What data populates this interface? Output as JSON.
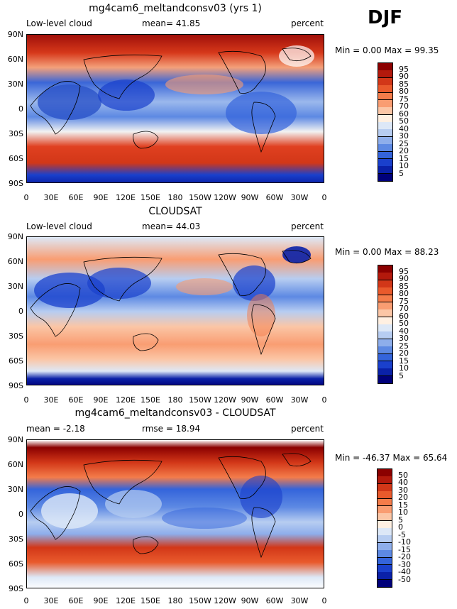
{
  "season": "DJF",
  "panels": [
    {
      "title": "mg4cam6_meltandconsv03 (yrs 1)",
      "left_label": "Low-level cloud",
      "mid_label": "mean=  41.85",
      "right_label": "percent",
      "minmax": "Min =    0.00 Max =   99.35",
      "colorbar_labels": [
        "95",
        "90",
        "85",
        "80",
        "75",
        "70",
        "60",
        "50",
        "40",
        "30",
        "25",
        "20",
        "15",
        "10",
        "5"
      ],
      "colorbar_colors": [
        "#8b0000",
        "#b3190c",
        "#d23718",
        "#e95a2c",
        "#f47c4a",
        "#f99d72",
        "#fbc6a6",
        "#fff0e2",
        "#dde8f7",
        "#b7cdf1",
        "#8eaeeb",
        "#5d89e3",
        "#3464db",
        "#1a40cc",
        "#0a21a8",
        "#00007a"
      ]
    },
    {
      "title": "CLOUDSAT",
      "left_label": "Low-level cloud",
      "mid_label": "mean=  44.03",
      "right_label": "percent",
      "minmax": "Min =    0.00 Max =   88.23",
      "colorbar_labels": [
        "95",
        "90",
        "85",
        "80",
        "75",
        "70",
        "60",
        "50",
        "40",
        "30",
        "25",
        "20",
        "15",
        "10",
        "5"
      ],
      "colorbar_colors": [
        "#8b0000",
        "#b3190c",
        "#d23718",
        "#e95a2c",
        "#f47c4a",
        "#f99d72",
        "#fbc6a6",
        "#fff0e2",
        "#dde8f7",
        "#b7cdf1",
        "#8eaeeb",
        "#5d89e3",
        "#3464db",
        "#1a40cc",
        "#0a21a8",
        "#00007a"
      ]
    },
    {
      "title": "mg4cam6_meltandconsv03 - CLOUDSAT",
      "left_label": "mean =   -2.18",
      "mid_label": "rmse =   18.94",
      "right_label": "percent",
      "minmax": "Min = -46.37 Max =   65.64",
      "colorbar_labels": [
        "50",
        "40",
        "30",
        "20",
        "15",
        "10",
        "5",
        "0",
        "-5",
        "-10",
        "-15",
        "-20",
        "-30",
        "-40",
        "-50"
      ],
      "colorbar_colors": [
        "#8b0000",
        "#b3190c",
        "#d23718",
        "#e95a2c",
        "#f47c4a",
        "#f99d72",
        "#fbc6a6",
        "#fff0e2",
        "#dde8f7",
        "#b7cdf1",
        "#8eaeeb",
        "#5d89e3",
        "#3464db",
        "#1a40cc",
        "#0a21a8",
        "#00007a"
      ]
    }
  ],
  "lat_labels": [
    "90N",
    "60N",
    "30N",
    "0",
    "30S",
    "60S",
    "90S"
  ],
  "lon_labels": [
    "0",
    "30E",
    "60E",
    "90E",
    "120E",
    "150E",
    "180",
    "150W",
    "120W",
    "90W",
    "60W",
    "30W",
    "0"
  ]
}
